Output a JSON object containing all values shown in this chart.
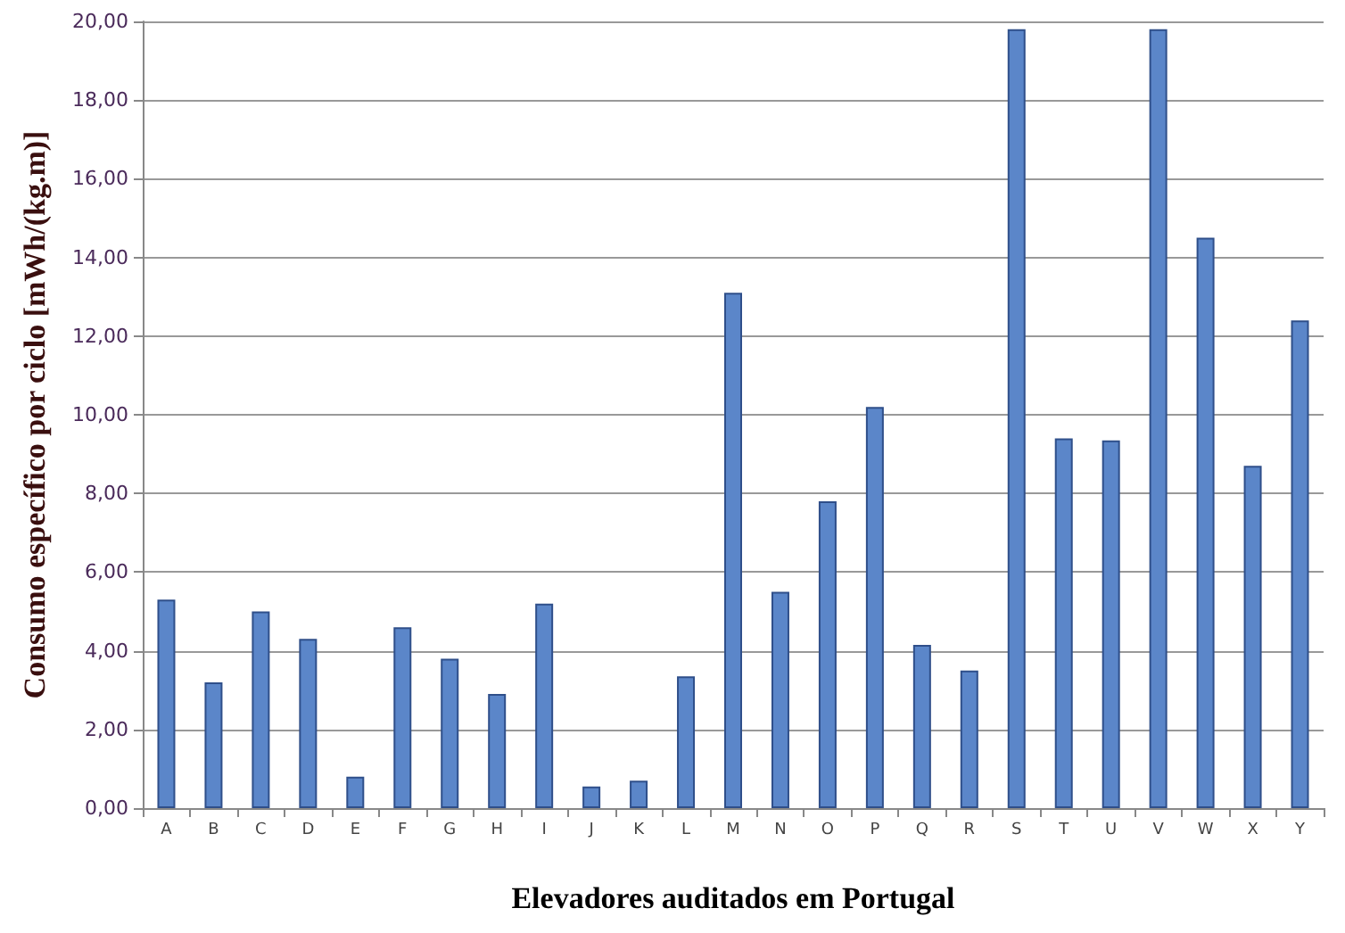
{
  "chart_data": {
    "type": "bar",
    "xlabel": "Elevadores auditados em Portugal",
    "ylabel": "Consumo específico por ciclo [mWh/(kg.m)]",
    "categories": [
      "A",
      "B",
      "C",
      "D",
      "E",
      "F",
      "G",
      "H",
      "I",
      "J",
      "K",
      "L",
      "M",
      "N",
      "O",
      "P",
      "Q",
      "R",
      "S",
      "T",
      "U",
      "V",
      "W",
      "X",
      "Y"
    ],
    "series": [
      {
        "color": "#5b86c9",
        "values": [
          5.3,
          3.2,
          5.0,
          4.3,
          0.8,
          4.6,
          3.8,
          2.9,
          5.2,
          0.55,
          0.7,
          3.35,
          13.1,
          5.5,
          7.8,
          10.2,
          4.15,
          3.5,
          19.8,
          9.4,
          9.35,
          19.8,
          14.5,
          8.7,
          12.4
        ]
      }
    ],
    "ylim": [
      0,
      20
    ],
    "yticks": [
      {
        "value": 0,
        "label": "0,00"
      },
      {
        "value": 2,
        "label": "2,00"
      },
      {
        "value": 4,
        "label": "4,00"
      },
      {
        "value": 6,
        "label": "6,00"
      },
      {
        "value": 8,
        "label": "8,00"
      },
      {
        "value": 10,
        "label": "10,00"
      },
      {
        "value": 12,
        "label": "12,00"
      },
      {
        "value": 14,
        "label": "14,00"
      },
      {
        "value": 16,
        "label": "16,00"
      },
      {
        "value": 18,
        "label": "18,00"
      },
      {
        "value": 20,
        "label": "20,00"
      }
    ],
    "grid": "y"
  }
}
